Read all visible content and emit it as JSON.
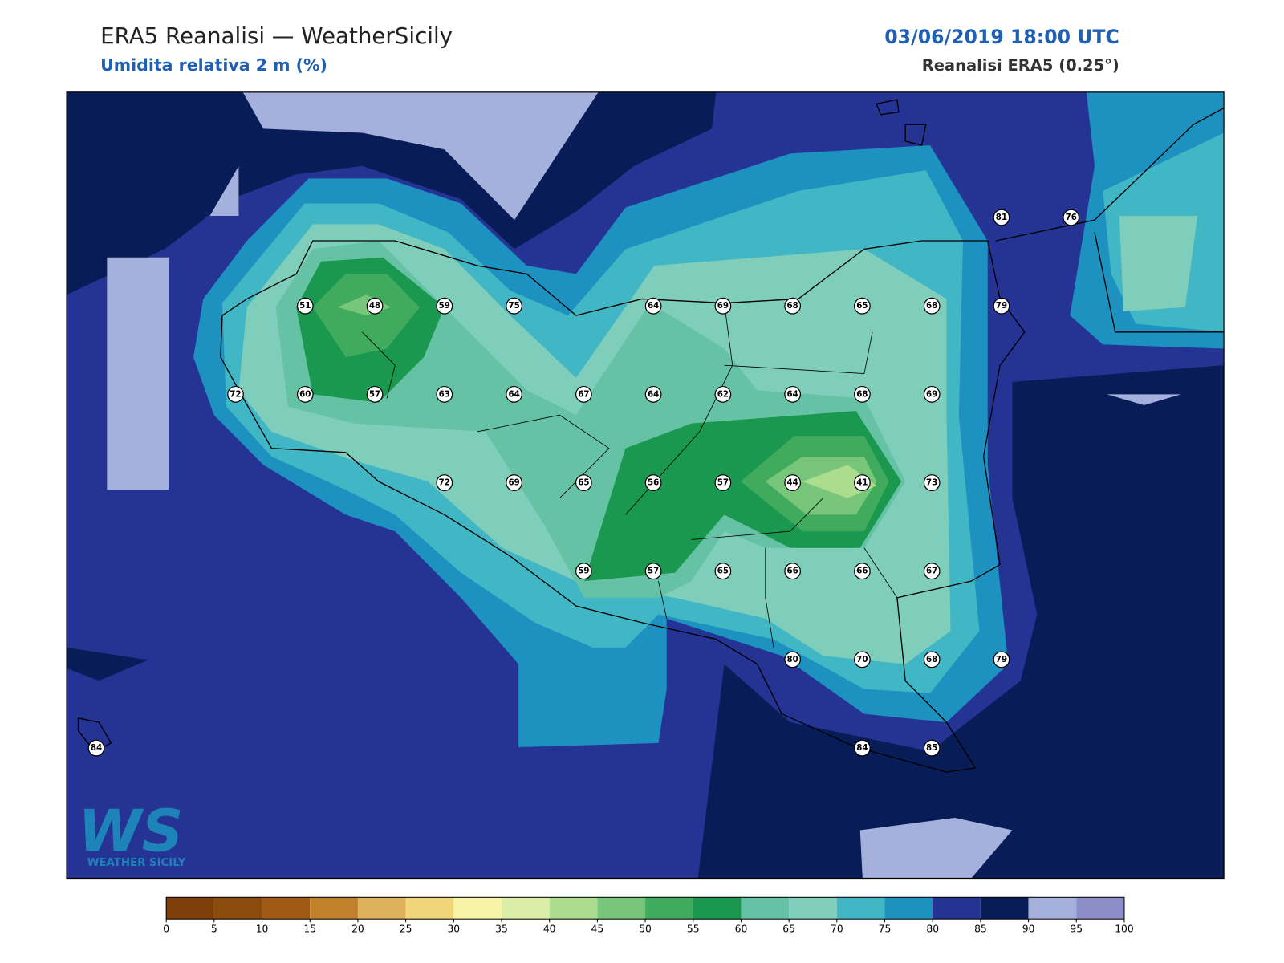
{
  "header": {
    "title": "ERA5 Reanalisi — WeatherSicily",
    "subtitle": "Umidita relativa 2 m (%)",
    "datetime": "03/06/2019 18:00 UTC",
    "source": "Reanalisi ERA5 (0.25°)"
  },
  "stations": [
    [
      null,
      null,
      null,
      null,
      null,
      null,
      null,
      null,
      null,
      null,
      null,
      null,
      null,
      81,
      76
    ],
    [
      null,
      null,
      null,
      51,
      48,
      59,
      75,
      null,
      64,
      69,
      68,
      65,
      68,
      79,
      null
    ],
    [
      null,
      null,
      72,
      60,
      57,
      63,
      64,
      67,
      64,
      62,
      64,
      68,
      69,
      null,
      null
    ],
    [
      null,
      null,
      null,
      null,
      null,
      72,
      69,
      65,
      56,
      57,
      44,
      41,
      73,
      null,
      null
    ],
    [
      null,
      null,
      null,
      null,
      null,
      null,
      null,
      59,
      57,
      65,
      66,
      66,
      67,
      null,
      null
    ],
    [
      null,
      null,
      null,
      null,
      null,
      null,
      null,
      null,
      null,
      null,
      80,
      70,
      68,
      79,
      null
    ],
    [
      84,
      null,
      null,
      null,
      null,
      null,
      null,
      null,
      null,
      null,
      null,
      84,
      85,
      null,
      null
    ]
  ],
  "colorbar": {
    "ticks": [
      0,
      5,
      10,
      15,
      20,
      25,
      30,
      35,
      40,
      45,
      50,
      55,
      60,
      65,
      70,
      75,
      80,
      85,
      90,
      95,
      100
    ],
    "colors": [
      "#7b3f07",
      "#8c4b0c",
      "#a05a13",
      "#c0802c",
      "#dfb15a",
      "#f0d57a",
      "#f7f4a8",
      "#daeea8",
      "#acdd8e",
      "#78c679",
      "#41ab5d",
      "#1a9850",
      "#66c2a4",
      "#7fcdbb",
      "#41b6c4",
      "#1d91c0",
      "#253494",
      "#081d58",
      "#a6b0dc",
      "#8c8cc8"
    ]
  },
  "logo": {
    "mark": "WS",
    "text": "WEATHER SICILY"
  }
}
